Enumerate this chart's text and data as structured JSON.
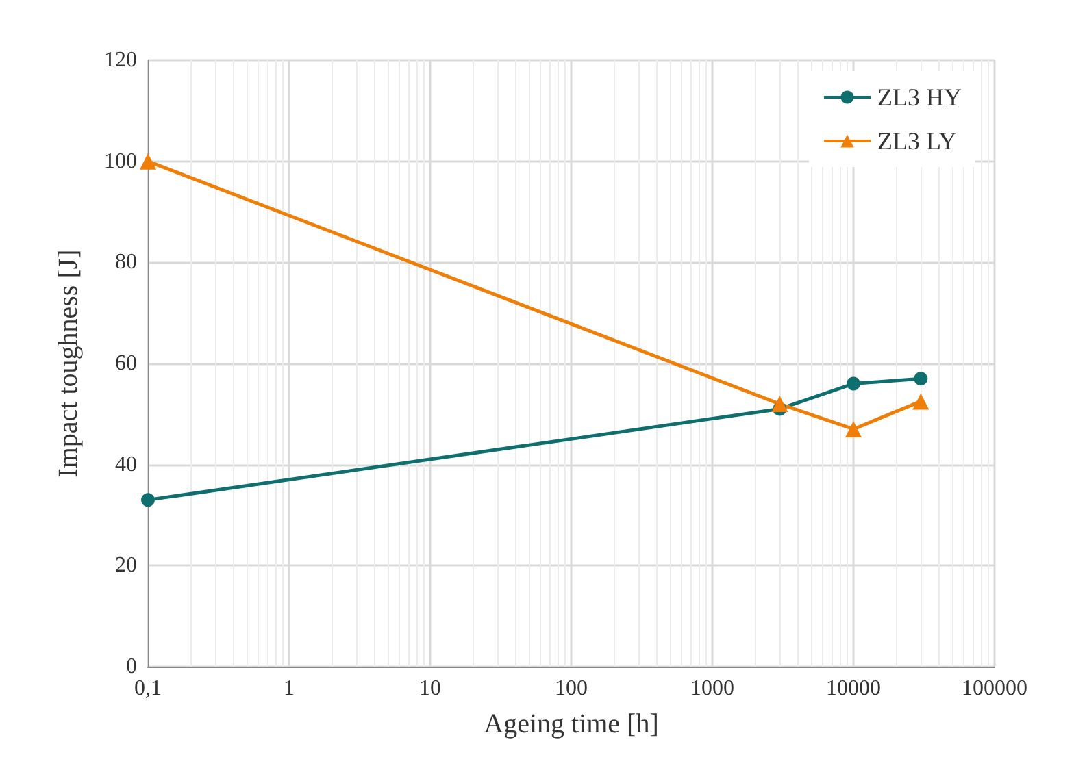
{
  "chart_data": {
    "type": "line",
    "xlabel": "Ageing time [h]",
    "ylabel": "Impact toughness [J]",
    "log": "x",
    "xlim": [
      0.1,
      100000
    ],
    "xticks": [
      {
        "value": 0.1,
        "label": "0,1"
      },
      1,
      10,
      100,
      1000,
      10000,
      100000
    ],
    "ylim": [
      0,
      120
    ],
    "yticks": [
      0,
      20,
      40,
      60,
      80,
      100,
      120
    ],
    "grid": true,
    "legend": "top right",
    "series": [
      {
        "name": "ZL3 HY",
        "color": "#0f6e6e",
        "marker": "circle",
        "x": [
          0.1,
          3000,
          10000,
          30000
        ],
        "values": [
          33,
          51,
          56,
          57
        ]
      },
      {
        "name": "ZL3 LY",
        "color": "#f07f0a",
        "marker": "triangle",
        "x": [
          0.1,
          3000,
          10000,
          30000
        ],
        "values": [
          100,
          52,
          47,
          52.5
        ]
      }
    ]
  }
}
